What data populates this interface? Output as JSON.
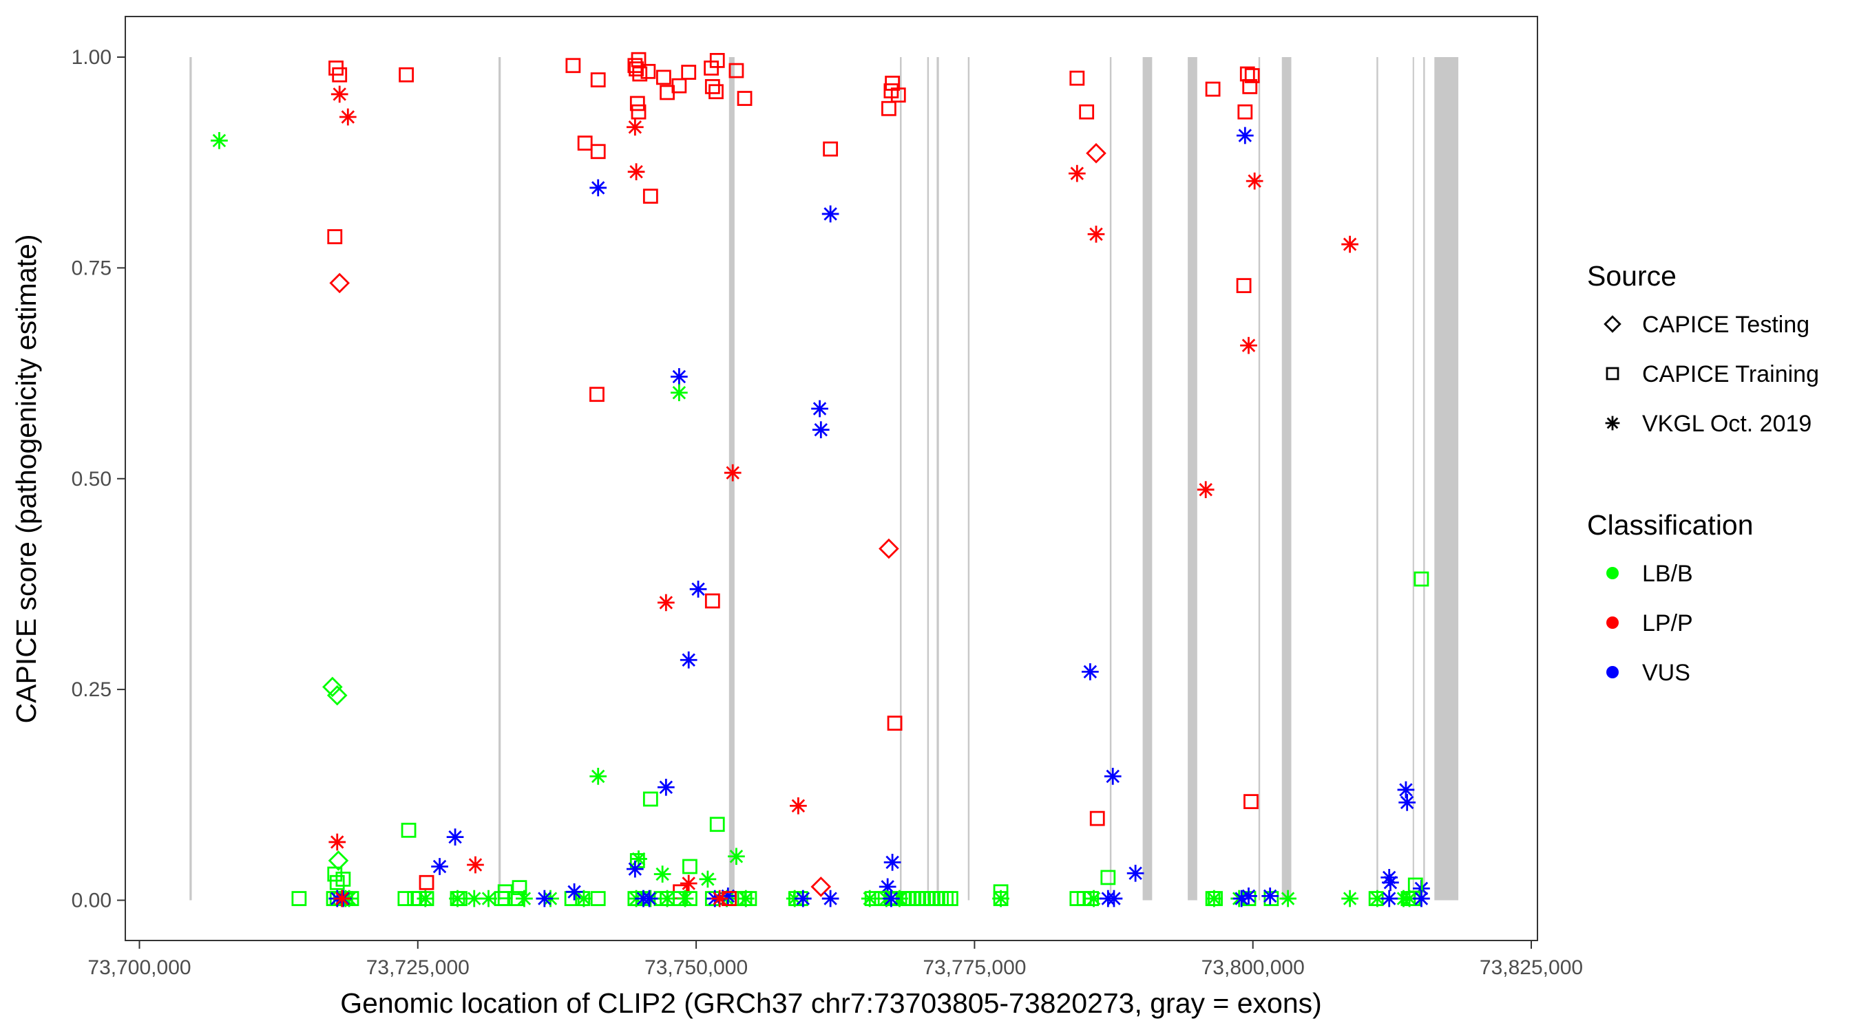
{
  "chart_data": {
    "type": "scatter",
    "title": "",
    "xlabel": "Genomic location of CLIP2 (GRCh37 chr7:73703805-73820273, gray = exons)",
    "ylabel": "CAPICE score (pathogenicity estimate)",
    "xlim": [
      73700000,
      73825000
    ],
    "ylim": [
      0,
      1
    ],
    "x_ticks": [
      73700000,
      73725000,
      73750000,
      73775000,
      73800000,
      73825000
    ],
    "x_tick_labels": [
      "73,700,000",
      "73,725,000",
      "73,750,000",
      "73,775,000",
      "73,800,000",
      "73,825,000"
    ],
    "y_ticks": [
      0,
      0.25,
      0.5,
      0.75,
      1.0
    ],
    "y_tick_labels": [
      "0.00",
      "0.25",
      "0.50",
      "0.75",
      "1.00"
    ],
    "grid": false,
    "legend_placement": "right",
    "legend": {
      "source_title": "Source",
      "sources": [
        {
          "code": "T",
          "label": "CAPICE Testing",
          "shape": "diamond"
        },
        {
          "code": "R",
          "label": "CAPICE Training",
          "shape": "square"
        },
        {
          "code": "V",
          "label": "VKGL Oct. 2019",
          "shape": "asterisk"
        }
      ],
      "class_title": "Classification",
      "classes": [
        {
          "code": "LB",
          "label": "LB/B",
          "color": "#00ff00"
        },
        {
          "code": "LP",
          "label": "LP/P",
          "color": "#ff0000"
        },
        {
          "code": "VUS",
          "label": "VUS",
          "color": "#0000ff"
        }
      ]
    },
    "exon_color": "#c8c8c8",
    "exons": [
      [
        73704500,
        73704700
      ],
      [
        73732250,
        73732450
      ],
      [
        73752950,
        73753450
      ],
      [
        73768300,
        73768450
      ],
      [
        73770750,
        73770900
      ],
      [
        73771600,
        73771800
      ],
      [
        73774400,
        73774550
      ],
      [
        73787150,
        73787300
      ],
      [
        73790100,
        73790950
      ],
      [
        73794150,
        73795000
      ],
      [
        73800500,
        73800650
      ],
      [
        73802600,
        73803450
      ],
      [
        73811100,
        73811250
      ],
      [
        73814350,
        73814450
      ],
      [
        73815300,
        73815450
      ],
      [
        73816300,
        73818450
      ]
    ],
    "points": [
      [
        73707169,
        0.901,
        "V",
        "LB"
      ],
      [
        73717655,
        0.987,
        "R",
        "LP"
      ],
      [
        73717976,
        0.979,
        "R",
        "LP"
      ],
      [
        73717976,
        0.956,
        "V",
        "LP"
      ],
      [
        73718725,
        0.929,
        "V",
        "LP"
      ],
      [
        73717548,
        0.787,
        "R",
        "LP"
      ],
      [
        73717976,
        0.732,
        "T",
        "LP"
      ],
      [
        73723968,
        0.979,
        "R",
        "LP"
      ],
      [
        73717762,
        0.069,
        "V",
        "LP"
      ],
      [
        73717334,
        0.253,
        "T",
        "LB"
      ],
      [
        73717762,
        0.243,
        "T",
        "LB"
      ],
      [
        73717869,
        0.047,
        "T",
        "LB"
      ],
      [
        73717548,
        0.031,
        "R",
        "LB"
      ],
      [
        73717762,
        0.021,
        "R",
        "LB"
      ],
      [
        73718297,
        0.025,
        "R",
        "LB"
      ],
      [
        73724182,
        0.083,
        "R",
        "LB"
      ],
      [
        73726964,
        0.04,
        "V",
        "VUS"
      ],
      [
        73728355,
        0.075,
        "V",
        "VUS"
      ],
      [
        73725787,
        0.021,
        "R",
        "LP"
      ],
      [
        73730174,
        0.042,
        "V",
        "LP"
      ],
      [
        73732849,
        0.01,
        "R",
        "LB"
      ],
      [
        73734133,
        0.015,
        "R",
        "LB"
      ],
      [
        73738948,
        0.99,
        "R",
        "LP"
      ],
      [
        73741195,
        0.973,
        "R",
        "LP"
      ],
      [
        73740018,
        0.898,
        "R",
        "LP"
      ],
      [
        73741195,
        0.888,
        "R",
        "LP"
      ],
      [
        73741195,
        0.845,
        "V",
        "VUS"
      ],
      [
        73741088,
        0.6,
        "R",
        "LP"
      ],
      [
        73741195,
        0.147,
        "V",
        "LB"
      ],
      [
        73744512,
        0.99,
        "R",
        "LP"
      ],
      [
        73744833,
        0.997,
        "R",
        "LP"
      ],
      [
        73744940,
        0.98,
        "R",
        "LP"
      ],
      [
        73744619,
        0.986,
        "R",
        "LP"
      ],
      [
        73745689,
        0.983,
        "R",
        "LP"
      ],
      [
        73747080,
        0.976,
        "R",
        "LP"
      ],
      [
        73747401,
        0.958,
        "R",
        "LP"
      ],
      [
        73748471,
        0.966,
        "R",
        "LP"
      ],
      [
        73749327,
        0.982,
        "R",
        "LP"
      ],
      [
        73751360,
        0.987,
        "R",
        "LP"
      ],
      [
        73751895,
        0.996,
        "R",
        "LP"
      ],
      [
        73751467,
        0.965,
        "R",
        "LP"
      ],
      [
        73751788,
        0.959,
        "R",
        "LP"
      ],
      [
        73753607,
        0.984,
        "R",
        "LP"
      ],
      [
        73754356,
        0.951,
        "R",
        "LP"
      ],
      [
        73744726,
        0.945,
        "R",
        "LP"
      ],
      [
        73744833,
        0.935,
        "R",
        "LP"
      ],
      [
        73745903,
        0.835,
        "R",
        "LP"
      ],
      [
        73744512,
        0.917,
        "V",
        "LP"
      ],
      [
        73744619,
        0.864,
        "V",
        "LP"
      ],
      [
        73748471,
        0.621,
        "V",
        "VUS"
      ],
      [
        73748471,
        0.602,
        "V",
        "LB"
      ],
      [
        73753286,
        0.507,
        "V",
        "LP"
      ],
      [
        73750183,
        0.369,
        "V",
        "VUS"
      ],
      [
        73747294,
        0.353,
        "V",
        "LP"
      ],
      [
        73751467,
        0.355,
        "R",
        "LP"
      ],
      [
        73749327,
        0.285,
        "V",
        "VUS"
      ],
      [
        73747294,
        0.134,
        "V",
        "VUS"
      ],
      [
        73745903,
        0.12,
        "R",
        "LB"
      ],
      [
        73751895,
        0.09,
        "R",
        "LB"
      ],
      [
        73753607,
        0.052,
        "V",
        "LB"
      ],
      [
        73744833,
        0.049,
        "V",
        "LB"
      ],
      [
        73744726,
        0.047,
        "R",
        "LB"
      ],
      [
        73746973,
        0.031,
        "V",
        "LB"
      ],
      [
        73749434,
        0.04,
        "R",
        "LB"
      ],
      [
        73751039,
        0.025,
        "V",
        "LB"
      ],
      [
        73749327,
        0.02,
        "V",
        "LP"
      ],
      [
        73748578,
        0.01,
        "R",
        "LP"
      ],
      [
        73744512,
        0.037,
        "V",
        "VUS"
      ],
      [
        73761097,
        0.583,
        "V",
        "VUS"
      ],
      [
        73761204,
        0.558,
        "V",
        "VUS"
      ],
      [
        73762060,
        0.814,
        "V",
        "VUS"
      ],
      [
        73762060,
        0.891,
        "R",
        "LP"
      ],
      [
        73759171,
        0.112,
        "V",
        "LP"
      ],
      [
        73761204,
        0.016,
        "T",
        "LP"
      ],
      [
        73767303,
        0.417,
        "T",
        "LP"
      ],
      [
        73767303,
        0.939,
        "R",
        "LP"
      ],
      [
        73767624,
        0.969,
        "R",
        "LP"
      ],
      [
        73767517,
        0.96,
        "R",
        "LP"
      ],
      [
        73768159,
        0.955,
        "R",
        "LP"
      ],
      [
        73767838,
        0.21,
        "R",
        "LP"
      ],
      [
        73767624,
        0.045,
        "V",
        "VUS"
      ],
      [
        73767196,
        0.016,
        "V",
        "VUS"
      ],
      [
        73777361,
        0.01,
        "R",
        "LB"
      ],
      [
        73784209,
        0.975,
        "R",
        "LP"
      ],
      [
        73785065,
        0.935,
        "R",
        "LP"
      ],
      [
        73784209,
        0.862,
        "V",
        "LP"
      ],
      [
        73785921,
        0.79,
        "V",
        "LP"
      ],
      [
        73785921,
        0.886,
        "T",
        "LP"
      ],
      [
        73785386,
        0.271,
        "V",
        "VUS"
      ],
      [
        73786028,
        0.097,
        "R",
        "LP"
      ],
      [
        73787419,
        0.147,
        "V",
        "VUS"
      ],
      [
        73786991,
        0.027,
        "R",
        "LB"
      ],
      [
        73789452,
        0.032,
        "V",
        "VUS"
      ],
      [
        73795765,
        0.487,
        "V",
        "LP"
      ],
      [
        73796407,
        0.962,
        "R",
        "LP"
      ],
      [
        73799510,
        0.98,
        "R",
        "LP"
      ],
      [
        73799724,
        0.965,
        "R",
        "LP"
      ],
      [
        73799938,
        0.978,
        "R",
        "LP"
      ],
      [
        73799296,
        0.935,
        "R",
        "LP"
      ],
      [
        73799296,
        0.907,
        "V",
        "VUS"
      ],
      [
        73799189,
        0.729,
        "R",
        "LP"
      ],
      [
        73799617,
        0.658,
        "V",
        "LP"
      ],
      [
        73800152,
        0.853,
        "V",
        "LP"
      ],
      [
        73799831,
        0.117,
        "R",
        "LP"
      ],
      [
        73808712,
        0.778,
        "V",
        "LP"
      ],
      [
        73815132,
        0.381,
        "R",
        "LB"
      ],
      [
        73813741,
        0.131,
        "V",
        "VUS"
      ],
      [
        73813848,
        0.116,
        "V",
        "VUS"
      ],
      [
        73812243,
        0.027,
        "V",
        "VUS"
      ],
      [
        73812350,
        0.021,
        "V",
        "VUS"
      ],
      [
        73815132,
        0.014,
        "V",
        "VUS"
      ],
      [
        73814597,
        0.018,
        "R",
        "LB"
      ],
      [
        73714338,
        0.002,
        "R",
        "LB"
      ],
      [
        73717441,
        0.002,
        "R",
        "LB"
      ],
      [
        73717762,
        0.002,
        "R",
        "LB"
      ],
      [
        73718083,
        0.002,
        "R",
        "LB"
      ],
      [
        73718511,
        0.002,
        "R",
        "LB"
      ],
      [
        73719046,
        0.002,
        "R",
        "LB"
      ],
      [
        73723861,
        0.002,
        "R",
        "LB"
      ],
      [
        73724717,
        0.002,
        "R",
        "LB"
      ],
      [
        73725145,
        0.002,
        "R",
        "LB"
      ],
      [
        73725787,
        0.002,
        "R",
        "LB"
      ],
      [
        73728569,
        0.002,
        "R",
        "LB"
      ],
      [
        73728783,
        0.002,
        "R",
        "LB"
      ],
      [
        73732528,
        0.002,
        "R",
        "LB"
      ],
      [
        73732849,
        0.002,
        "R",
        "LB"
      ],
      [
        73733812,
        0.002,
        "R",
        "LB"
      ],
      [
        73738841,
        0.002,
        "R",
        "LB"
      ],
      [
        73739804,
        0.002,
        "R",
        "LB"
      ],
      [
        73741195,
        0.002,
        "R",
        "LB"
      ],
      [
        73744512,
        0.002,
        "R",
        "LB"
      ],
      [
        73745261,
        0.002,
        "R",
        "LB"
      ],
      [
        73746866,
        0.002,
        "R",
        "LB"
      ],
      [
        73747401,
        0.002,
        "R",
        "LB"
      ],
      [
        73748578,
        0.002,
        "R",
        "LB"
      ],
      [
        73749434,
        0.002,
        "R",
        "LB"
      ],
      [
        73751467,
        0.002,
        "R",
        "LB"
      ],
      [
        73752965,
        0.002,
        "R",
        "LB"
      ],
      [
        73753821,
        0.002,
        "R",
        "LB"
      ],
      [
        73754356,
        0.002,
        "R",
        "LB"
      ],
      [
        73754784,
        0.002,
        "R",
        "LB"
      ],
      [
        73758957,
        0.002,
        "R",
        "LB"
      ],
      [
        73759385,
        0.002,
        "R",
        "LB"
      ],
      [
        73765805,
        0.002,
        "R",
        "LB"
      ],
      [
        73766661,
        0.002,
        "R",
        "LB"
      ],
      [
        73767517,
        0.002,
        "R",
        "LB"
      ],
      [
        73767945,
        0.002,
        "R",
        "LB"
      ],
      [
        73768587,
        0.002,
        "R",
        "LB"
      ],
      [
        73769015,
        0.002,
        "R",
        "LB"
      ],
      [
        73769443,
        0.002,
        "R",
        "LB"
      ],
      [
        73769871,
        0.002,
        "R",
        "LB"
      ],
      [
        73770299,
        0.002,
        "R",
        "LB"
      ],
      [
        73770727,
        0.002,
        "R",
        "LB"
      ],
      [
        73771155,
        0.002,
        "R",
        "LB"
      ],
      [
        73771583,
        0.002,
        "R",
        "LB"
      ],
      [
        73772011,
        0.002,
        "R",
        "LB"
      ],
      [
        73772439,
        0.002,
        "R",
        "LB"
      ],
      [
        73772867,
        0.002,
        "R",
        "LB"
      ],
      [
        73777361,
        0.002,
        "R",
        "LB"
      ],
      [
        73784209,
        0.002,
        "R",
        "LB"
      ],
      [
        73784851,
        0.002,
        "R",
        "LB"
      ],
      [
        73785493,
        0.002,
        "R",
        "LB"
      ],
      [
        73796407,
        0.002,
        "R",
        "LB"
      ],
      [
        73796621,
        0.002,
        "R",
        "LB"
      ],
      [
        73799617,
        0.002,
        "R",
        "LB"
      ],
      [
        73801650,
        0.002,
        "R",
        "LB"
      ],
      [
        73811066,
        0.002,
        "R",
        "LB"
      ],
      [
        73813955,
        0.002,
        "R",
        "LB"
      ],
      [
        73814383,
        0.002,
        "R",
        "LB"
      ],
      [
        73718511,
        0.002,
        "V",
        "LB"
      ],
      [
        73718832,
        0.002,
        "V",
        "LB"
      ],
      [
        73725680,
        0.002,
        "V",
        "LB"
      ],
      [
        73728569,
        0.002,
        "V",
        "LB"
      ],
      [
        73730067,
        0.002,
        "V",
        "LB"
      ],
      [
        73731351,
        0.002,
        "V",
        "LB"
      ],
      [
        73734561,
        0.002,
        "V",
        "LB"
      ],
      [
        73736915,
        0.002,
        "V",
        "LB"
      ],
      [
        73739911,
        0.002,
        "V",
        "LB"
      ],
      [
        73744619,
        0.002,
        "V",
        "LB"
      ],
      [
        73745903,
        0.002,
        "V",
        "LB"
      ],
      [
        73747401,
        0.002,
        "V",
        "LB"
      ],
      [
        73749006,
        0.002,
        "V",
        "LB"
      ],
      [
        73752751,
        0.002,
        "V",
        "LB"
      ],
      [
        73754463,
        0.002,
        "V",
        "LB"
      ],
      [
        73758850,
        0.002,
        "V",
        "LB"
      ],
      [
        73765591,
        0.002,
        "V",
        "LB"
      ],
      [
        73767089,
        0.002,
        "V",
        "LB"
      ],
      [
        73768266,
        0.002,
        "V",
        "LB"
      ],
      [
        73777361,
        0.002,
        "V",
        "LB"
      ],
      [
        73785707,
        0.002,
        "V",
        "LB"
      ],
      [
        73796514,
        0.002,
        "V",
        "LB"
      ],
      [
        73798761,
        0.002,
        "V",
        "LB"
      ],
      [
        73803148,
        0.002,
        "V",
        "LB"
      ],
      [
        73808712,
        0.002,
        "V",
        "LB"
      ],
      [
        73811173,
        0.002,
        "V",
        "LB"
      ],
      [
        73813527,
        0.002,
        "V",
        "LB"
      ],
      [
        73814062,
        0.002,
        "V",
        "LB"
      ],
      [
        73717762,
        0.002,
        "V",
        "VUS"
      ],
      [
        73718297,
        0.002,
        "V",
        "VUS"
      ],
      [
        73736380,
        0.002,
        "V",
        "VUS"
      ],
      [
        73739055,
        0.01,
        "V",
        "VUS"
      ],
      [
        73745261,
        0.002,
        "V",
        "VUS"
      ],
      [
        73745796,
        0.002,
        "V",
        "VUS"
      ],
      [
        73751681,
        0.002,
        "V",
        "VUS"
      ],
      [
        73752858,
        0.005,
        "V",
        "VUS"
      ],
      [
        73759599,
        0.002,
        "V",
        "VUS"
      ],
      [
        73762060,
        0.002,
        "V",
        "VUS"
      ],
      [
        73767517,
        0.002,
        "V",
        "VUS"
      ],
      [
        73786991,
        0.002,
        "V",
        "VUS"
      ],
      [
        73787526,
        0.002,
        "V",
        "VUS"
      ],
      [
        73798975,
        0.002,
        "V",
        "VUS"
      ],
      [
        73799617,
        0.005,
        "V",
        "VUS"
      ],
      [
        73801543,
        0.005,
        "V",
        "VUS"
      ],
      [
        73812243,
        0.002,
        "V",
        "VUS"
      ],
      [
        73815132,
        0.002,
        "V",
        "VUS"
      ],
      [
        73718190,
        0.002,
        "V",
        "LP"
      ],
      [
        73752109,
        0.002,
        "V",
        "LP"
      ],
      [
        73752965,
        0.002,
        "R",
        "LP"
      ]
    ]
  }
}
